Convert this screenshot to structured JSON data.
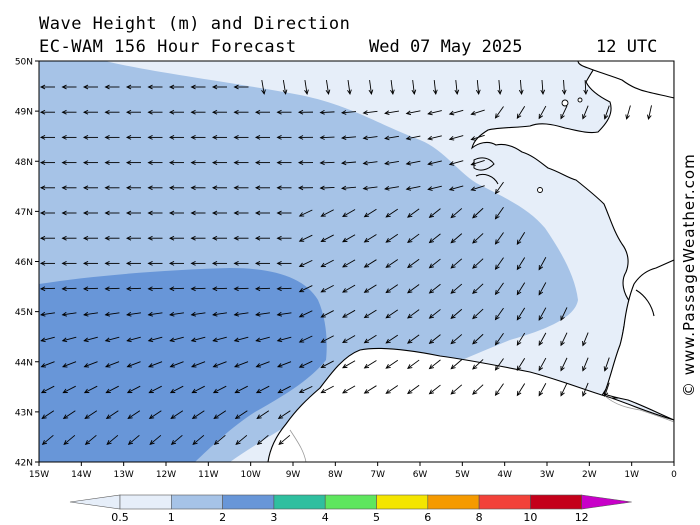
{
  "header": {
    "title": "Wave Height (m) and Direction",
    "model": "EC-WAM 156 Hour Forecast",
    "date": "Wed 07 May 2025",
    "time": "12 UTC"
  },
  "watermark": "© www.PassageWeather.com",
  "map": {
    "lat_ticks": [
      "50N",
      "49N",
      "48N",
      "47N",
      "46N",
      "45N",
      "44N",
      "43N",
      "42N"
    ],
    "lon_ticks": [
      "15W",
      "14W",
      "13W",
      "12W",
      "11W",
      "10W",
      "9W",
      "8W",
      "7W",
      "6W",
      "5W",
      "4W",
      "3W",
      "2W",
      "1W",
      "0"
    ],
    "land_color": "#ffffff",
    "coast_color": "#000000"
  },
  "legend": {
    "tick_labels": [
      "0.5",
      "1",
      "2",
      "3",
      "4",
      "5",
      "6",
      "8",
      "10",
      "12"
    ],
    "colors": [
      "#e6eef9",
      "#a6c3e7",
      "#6896d8",
      "#2fbf9f",
      "#5ee65e",
      "#f4e500",
      "#f59a00",
      "#f2423a",
      "#c4001a",
      "#c800c8"
    ]
  },
  "wave_fields": {
    "below_1m_color": "#e6eef9",
    "1_to_2m_color": "#a6c3e7",
    "2_to_3m_color": "#6896d8"
  }
}
